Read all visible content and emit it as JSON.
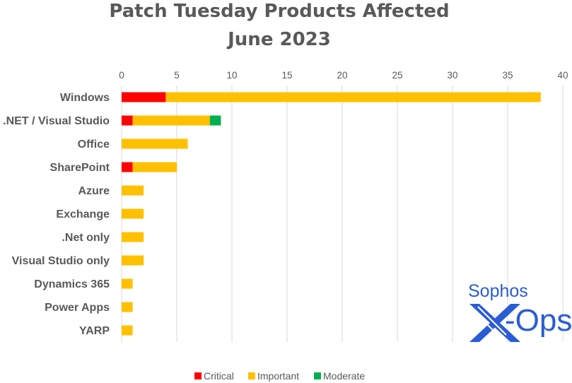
{
  "chart_data": {
    "type": "bar",
    "orientation": "horizontal",
    "stacked": true,
    "title": "Patch Tuesday Products Affected",
    "subtitle": "June 2023",
    "categories": [
      "Windows",
      ".NET / Visual Studio",
      "Office",
      "SharePoint",
      "Azure",
      "Exchange",
      ".Net only",
      "Visual Studio only",
      "Dynamics 365",
      "Power Apps",
      "YARP"
    ],
    "series": [
      {
        "name": "Critical",
        "color": "#ff0000",
        "values": [
          4,
          1,
          0,
          1,
          0,
          0,
          0,
          0,
          0,
          0,
          0
        ]
      },
      {
        "name": "Important",
        "color": "#ffc000",
        "values": [
          34,
          7,
          6,
          4,
          2,
          2,
          2,
          2,
          1,
          1,
          1
        ]
      },
      {
        "name": "Moderate",
        "color": "#00b050",
        "values": [
          0,
          1,
          0,
          0,
          0,
          0,
          0,
          0,
          0,
          0,
          0
        ]
      }
    ],
    "xlim": [
      0,
      40
    ],
    "xticks": [
      0,
      5,
      10,
      15,
      20,
      25,
      30,
      35,
      40
    ],
    "xlabel": "",
    "ylabel": "",
    "grid": true,
    "xaxis_position": "top",
    "legend_position": "bottom"
  },
  "logo": {
    "brand": "Sophos",
    "product": "X-Ops",
    "product_suffix": "-Ops",
    "color": "#2a5cd6"
  }
}
